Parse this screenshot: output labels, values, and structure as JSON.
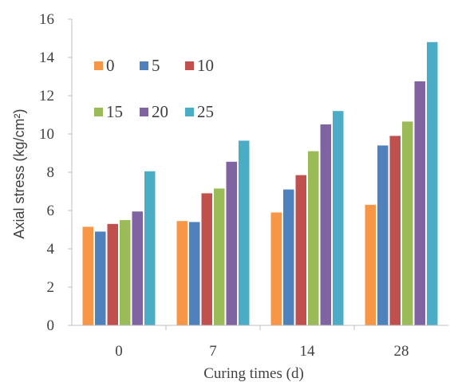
{
  "chart_data": {
    "type": "bar",
    "title": "",
    "xlabel": "Curing times (d)",
    "ylabel": "Axial stress (kg/cm²)",
    "ylim": [
      0,
      16
    ],
    "yticks": [
      "0",
      "2",
      "4",
      "6",
      "8",
      "10",
      "12",
      "14",
      "16"
    ],
    "categories": [
      "0",
      "7",
      "14",
      "28"
    ],
    "grid": false,
    "legend_position": "top-left",
    "series": [
      {
        "name": "0",
        "color": "#F79646",
        "values": [
          5.15,
          5.45,
          5.9,
          6.3
        ]
      },
      {
        "name": "5",
        "color": "#4F81BD",
        "values": [
          4.9,
          5.4,
          7.1,
          9.4
        ]
      },
      {
        "name": "10",
        "color": "#C0504D",
        "values": [
          5.3,
          6.9,
          7.85,
          9.9
        ]
      },
      {
        "name": "15",
        "color": "#9BBB59",
        "values": [
          5.5,
          7.15,
          9.1,
          10.65
        ]
      },
      {
        "name": "20",
        "color": "#8064A2",
        "values": [
          5.95,
          8.55,
          10.5,
          12.75
        ]
      },
      {
        "name": "25",
        "color": "#4BACC6",
        "values": [
          8.05,
          9.65,
          11.2,
          14.8
        ]
      }
    ]
  }
}
